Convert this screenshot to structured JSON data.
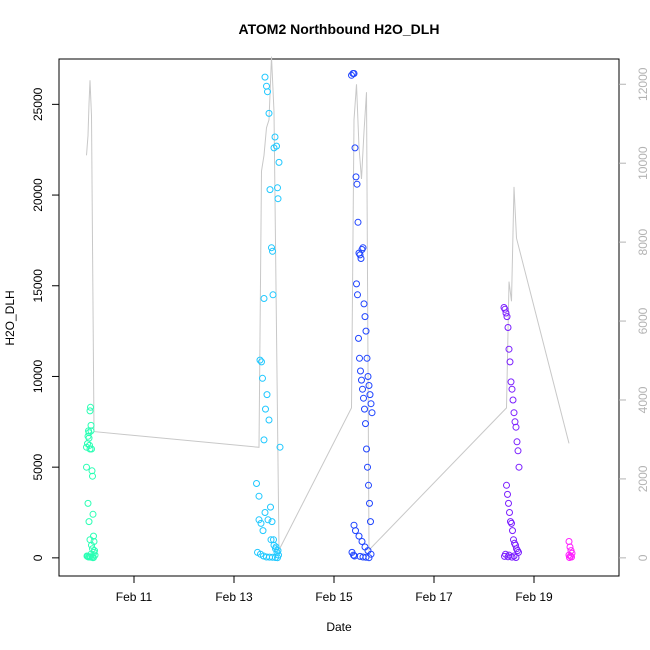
{
  "chart_data": {
    "type": "scatter",
    "title": "ATOM2 Northbound H2O_DLH",
    "xlabel": "Date",
    "ylabel": "H2O_DLH",
    "xlim": [
      9.5,
      20.7
    ],
    "ylim": [
      -1000,
      27500
    ],
    "x_ticks": [
      {
        "value": 11,
        "label": "Feb 11"
      },
      {
        "value": 13,
        "label": "Feb 13"
      },
      {
        "value": 15,
        "label": "Feb 15"
      },
      {
        "value": 17,
        "label": "Feb 17"
      },
      {
        "value": 19,
        "label": "Feb 19"
      }
    ],
    "y_ticks": [
      {
        "value": 0,
        "label": "0"
      },
      {
        "value": 5000,
        "label": "5000"
      },
      {
        "value": 10000,
        "label": "10000"
      },
      {
        "value": 15000,
        "label": "15000"
      },
      {
        "value": 20000,
        "label": "20000"
      },
      {
        "value": 25000,
        "label": "25000"
      }
    ],
    "y2_ticks": [
      {
        "value": 0,
        "label": "0"
      },
      {
        "value": 2000,
        "label": "2000"
      },
      {
        "value": 4000,
        "label": "4000"
      },
      {
        "value": 6000,
        "label": "6000"
      },
      {
        "value": 8000,
        "label": "8000"
      },
      {
        "value": 10000,
        "label": "10000"
      },
      {
        "value": 12000,
        "label": "12000"
      }
    ],
    "y2lim": [
      -460,
      12640
    ],
    "line_color": "#c8c8c8",
    "series": [
      {
        "color": "#2affb4",
        "x": [
          10.05,
          10.07,
          10.08,
          10.09,
          10.1,
          10.1,
          10.11,
          10.12,
          10.12,
          10.13,
          10.14,
          10.14,
          10.15,
          10.16,
          10.17,
          10.18,
          10.19,
          10.2,
          10.21,
          10.22,
          10.05,
          10.08,
          10.1,
          10.12,
          10.15,
          10.17,
          10.2,
          10.06,
          10.09,
          10.13,
          10.16,
          10.19,
          10.07,
          10.11,
          10.14,
          10.18
        ],
        "y": [
          6100,
          6300,
          6700,
          7000,
          6900,
          6600,
          6200,
          6000,
          8100,
          8300,
          7300,
          7000,
          6000,
          4800,
          4500,
          2400,
          1200,
          900,
          400,
          150,
          5000,
          3000,
          2000,
          1000,
          700,
          500,
          300,
          100,
          50,
          40,
          30,
          20,
          80,
          60,
          200,
          10
        ]
      },
      {
        "color": "#1fc8ff",
        "x": [
          13.45,
          13.5,
          13.52,
          13.55,
          13.57,
          13.6,
          13.62,
          13.65,
          13.67,
          13.7,
          13.72,
          13.75,
          13.77,
          13.78,
          13.8,
          13.82,
          13.85,
          13.87,
          13.88,
          13.9,
          13.92,
          13.6,
          13.63,
          13.66,
          13.7,
          13.73,
          13.76,
          13.79,
          13.83,
          13.86,
          13.89,
          13.5,
          13.54,
          13.58,
          13.62,
          13.68,
          13.74,
          13.8,
          13.84,
          13.88,
          13.47,
          13.53,
          13.59,
          13.65,
          13.71,
          13.77,
          13.83,
          13.87
        ],
        "y": [
          4100,
          3400,
          10900,
          10800,
          9900,
          6500,
          26500,
          26000,
          25700,
          24500,
          20300,
          17100,
          16900,
          14500,
          22600,
          23200,
          22700,
          20400,
          19800,
          21800,
          6100,
          14300,
          8200,
          9000,
          7600,
          2800,
          2000,
          1000,
          500,
          300,
          150,
          2100,
          1900,
          1500,
          2500,
          2100,
          1000,
          700,
          600,
          400,
          300,
          200,
          100,
          50,
          40,
          30,
          20,
          10
        ]
      },
      {
        "color": "#1f44ff",
        "x": [
          15.35,
          15.38,
          15.4,
          15.42,
          15.44,
          15.46,
          15.48,
          15.5,
          15.52,
          15.54,
          15.56,
          15.58,
          15.6,
          15.62,
          15.64,
          15.66,
          15.68,
          15.7,
          15.72,
          15.74,
          15.76,
          15.45,
          15.47,
          15.49,
          15.51,
          15.53,
          15.55,
          15.57,
          15.59,
          15.61,
          15.63,
          15.65,
          15.67,
          15.69,
          15.71,
          15.73,
          15.4,
          15.43,
          15.5,
          15.56,
          15.62,
          15.68,
          15.74,
          15.36,
          15.39,
          15.41,
          15.52,
          15.58,
          15.64,
          15.7
        ],
        "y": [
          26600,
          26700,
          26700,
          22600,
          21000,
          20600,
          18500,
          16800,
          16700,
          16500,
          17000,
          17100,
          14000,
          13300,
          12500,
          11000,
          10000,
          9500,
          9000,
          8500,
          8000,
          15100,
          14500,
          12100,
          11000,
          10300,
          9800,
          9300,
          8800,
          8200,
          7400,
          6000,
          5000,
          4000,
          3000,
          2000,
          1800,
          1500,
          1200,
          900,
          600,
          400,
          200,
          300,
          150,
          100,
          80,
          50,
          30,
          10
        ]
      },
      {
        "color": "#7b1fff",
        "x": [
          18.4,
          18.42,
          18.44,
          18.46,
          18.48,
          18.5,
          18.52,
          18.54,
          18.56,
          18.58,
          18.6,
          18.62,
          18.64,
          18.66,
          18.68,
          18.7,
          18.45,
          18.47,
          18.49,
          18.51,
          18.53,
          18.55,
          18.57,
          18.59,
          18.61,
          18.63,
          18.65,
          18.67,
          18.69,
          18.43,
          18.5,
          18.6,
          18.41,
          18.48,
          18.56,
          18.64
        ],
        "y": [
          13800,
          13700,
          13500,
          13300,
          12700,
          11500,
          10800,
          9700,
          9300,
          8700,
          8000,
          7500,
          7200,
          6400,
          5900,
          5000,
          4000,
          3500,
          3000,
          2500,
          2000,
          1900,
          1500,
          1000,
          800,
          700,
          500,
          400,
          300,
          200,
          150,
          100,
          80,
          60,
          40,
          20
        ]
      },
      {
        "color": "#ff1fff",
        "x": [
          19.7,
          19.72,
          19.74,
          19.76,
          19.7,
          19.73,
          19.75,
          19.71
        ],
        "y": [
          900,
          600,
          400,
          250,
          150,
          100,
          50,
          20
        ]
      }
    ],
    "line_y2": {
      "x": [
        10.05,
        10.08,
        10.1,
        10.12,
        10.15,
        10.2,
        13.5,
        13.55,
        13.6,
        13.65,
        13.7,
        13.75,
        13.8,
        13.9,
        15.35,
        15.4,
        15.45,
        15.5,
        15.55,
        15.6,
        15.65,
        15.7,
        18.45,
        18.5,
        18.55,
        18.6,
        18.65,
        19.7
      ],
      "y": [
        10200,
        10700,
        11500,
        12100,
        11200,
        3200,
        2800,
        9800,
        10200,
        10900,
        11100,
        12700,
        11300,
        200,
        3800,
        11100,
        12000,
        10400,
        9600,
        10800,
        11800,
        200,
        3800,
        7000,
        6500,
        9400,
        8100,
        2900
      ]
    }
  }
}
